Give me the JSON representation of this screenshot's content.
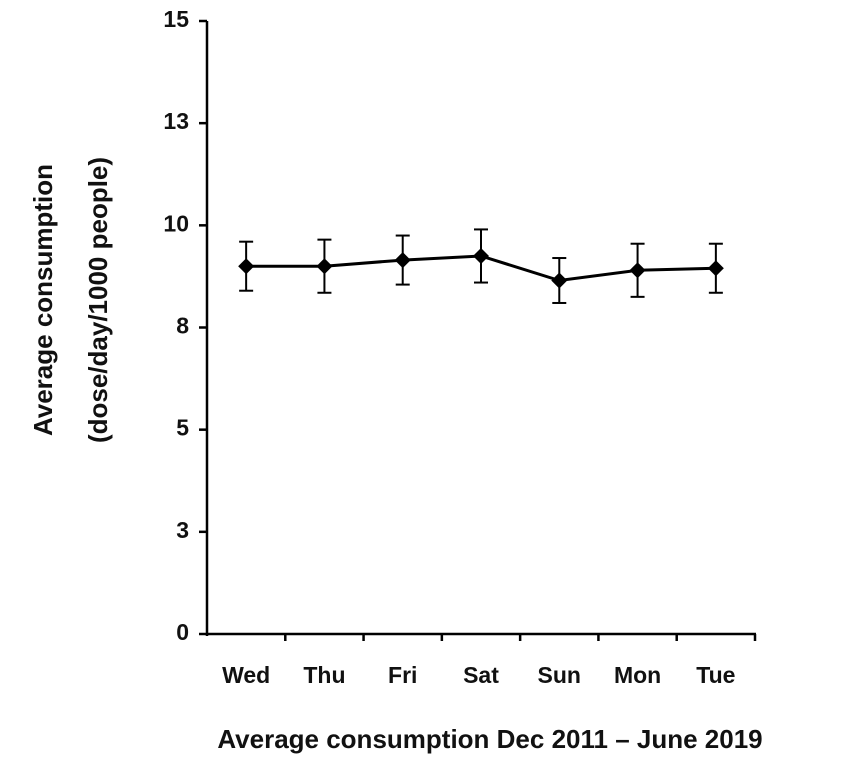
{
  "chart_data": {
    "type": "line",
    "x_label": "Average consumption Dec 2011 – June 2019",
    "y_label": [
      "Average consumption",
      "(dose/day/1000 people)"
    ],
    "categories": [
      "Wed",
      "Thu",
      "Fri",
      "Sat",
      "Sun",
      "Mon",
      "Tue"
    ],
    "values": [
      9.0,
      9.0,
      9.15,
      9.25,
      8.65,
      8.9,
      8.95
    ],
    "errors": [
      0.6,
      0.65,
      0.6,
      0.65,
      0.55,
      0.65,
      0.6
    ],
    "color": "#000000",
    "ylim": [
      0,
      15
    ],
    "yticks": [
      0,
      {
        "value": 2.5,
        "label": "3"
      },
      5,
      {
        "value": 7.5,
        "label": "8"
      },
      10,
      {
        "value": 12.5,
        "label": "13"
      },
      15
    ],
    "grid": false
  }
}
